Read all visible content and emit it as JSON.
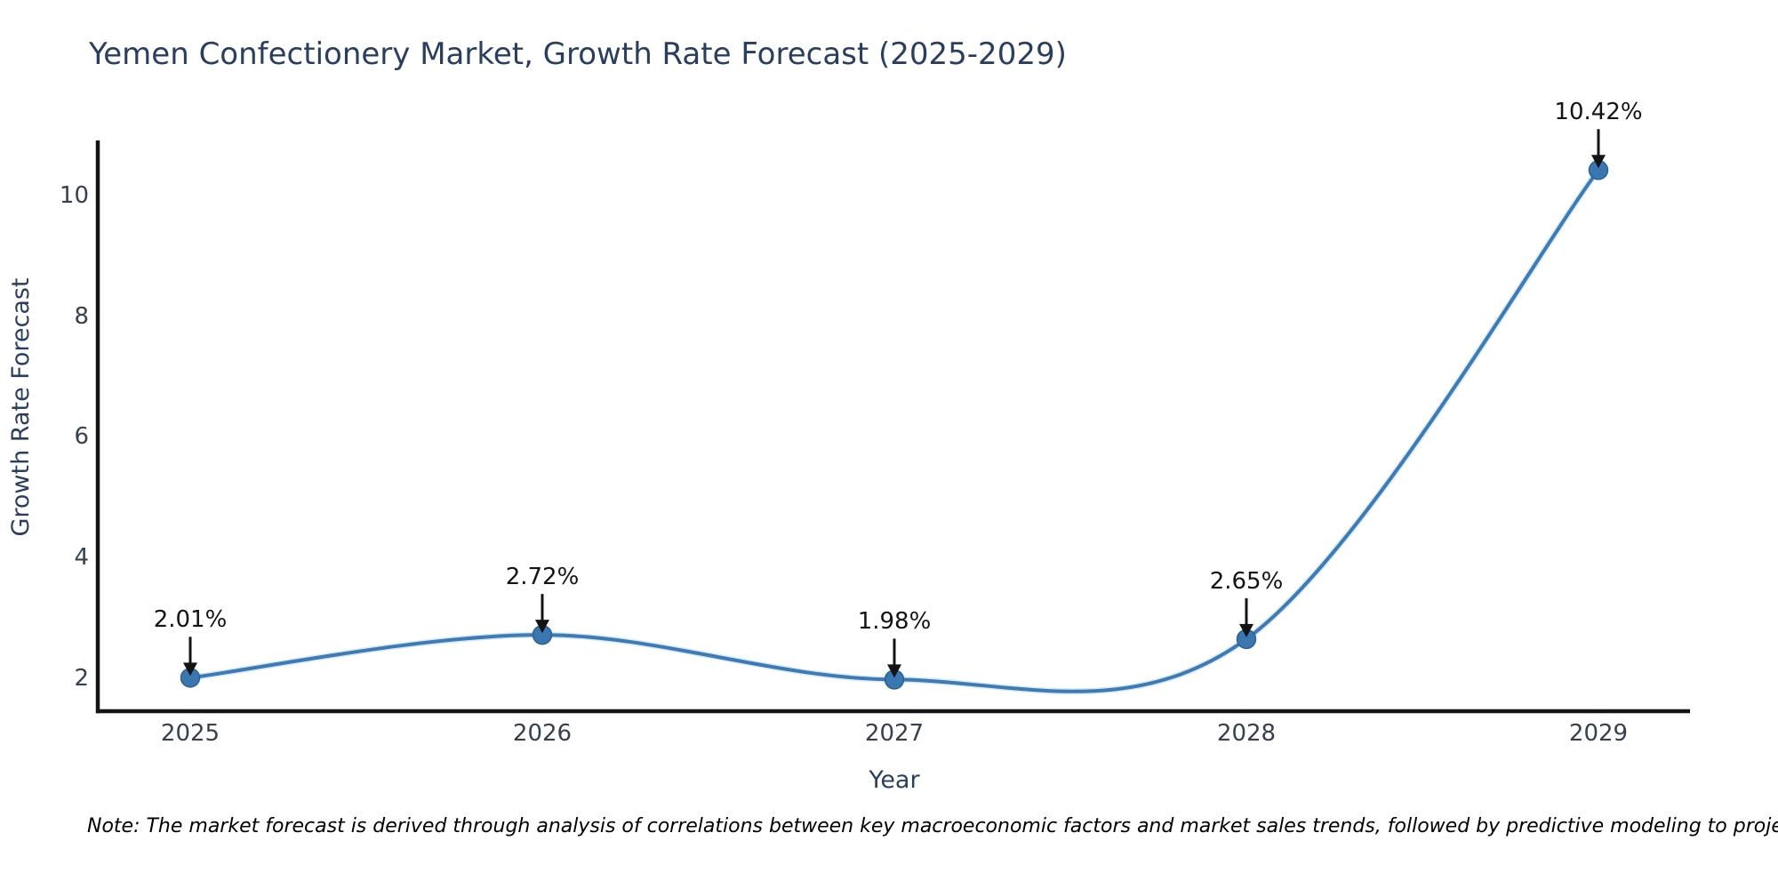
{
  "page": {
    "background": "#ffffff"
  },
  "note": "Note: The market forecast is derived through analysis of correlations between key macroeconomic factors and market sales trends, followed by predictive modeling to project future sales.",
  "chart_data": {
    "type": "line",
    "title": "Yemen Confectionery Market, Growth Rate Forecast (2025-2029)",
    "xlabel": "Year",
    "ylabel": "Growth Rate Forecast",
    "x": [
      2025,
      2026,
      2027,
      2028,
      2029
    ],
    "series": [
      {
        "name": "Growth Rate Forecast",
        "values": [
          2.01,
          2.72,
          1.98,
          2.65,
          10.42
        ]
      }
    ],
    "point_labels": [
      "2.01%",
      "2.72%",
      "1.98%",
      "2.65%",
      "10.42%"
    ],
    "yticks": [
      2,
      4,
      6,
      8,
      10
    ],
    "ylim": [
      1.45,
      10.92
    ],
    "grid": false,
    "legend": "none",
    "smooth": true,
    "annotations_arrow_down": true,
    "style": {
      "line_color": "#3c7bb5",
      "line_halo_color": "#a9cbe6",
      "marker_color": "#3a77b1",
      "marker_edge_color": "#2e628f",
      "spine_color": "#141414",
      "title_color": "#2a3f5f",
      "axis_label_color": "#2a3f5f",
      "tick_color": "#36404e",
      "annotation_color": "#141414"
    }
  }
}
